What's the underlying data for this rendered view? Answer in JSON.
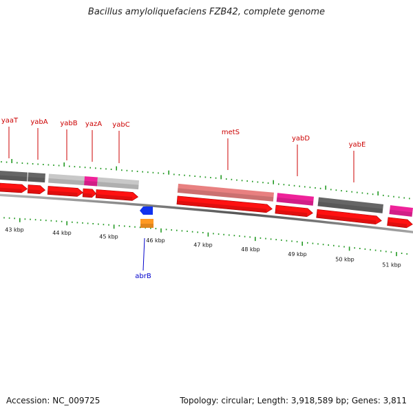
{
  "title": "Bacillus amyloliquefaciens FZB42, complete genome",
  "footer": {
    "accession": "Accession: NC_009725",
    "summary": "Topology: circular; Length: 3,918,589 bp; Genes: 3,811"
  },
  "kbp_ticks": [
    "43 kbp",
    "44 kbp",
    "45 kbp",
    "46 kbp",
    "47 kbp",
    "48 kbp",
    "49 kbp",
    "50 kbp",
    "51 kbp"
  ],
  "gene_labels_upper": [
    "yaaT",
    "yabA",
    "yabB",
    "yazA",
    "yabC",
    "metS",
    "yabD",
    "yabE"
  ],
  "gene_labels_lower": [
    "abrB"
  ],
  "colors": {
    "label_upper": "#cc0000",
    "label_lower": "#0000cc",
    "gene_red": "#ff1111",
    "magenta": "#ee2299",
    "dark_gray": "#666666",
    "light_gray": "#c8c8c8",
    "salmon": "#e88080",
    "blue": "#1133ee",
    "orange": "#ff9922",
    "tick_green": "#229922"
  }
}
